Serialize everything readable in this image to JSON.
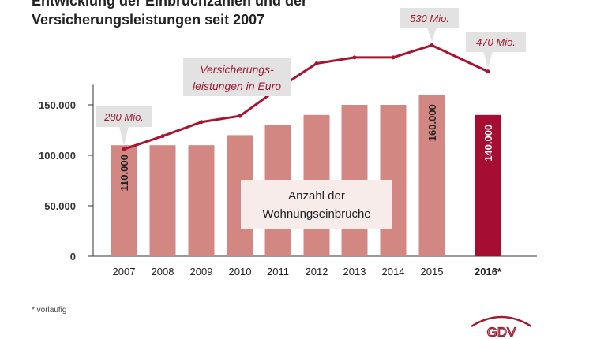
{
  "titles": {
    "line1": "Entwicklung der Einbruchzahlen und der",
    "line2": "Versicherungsleistungen seit 2007"
  },
  "footnote": "* vorläufig",
  "logo_text": "GDV",
  "chart_data": {
    "type": "bar",
    "categories": [
      "2007",
      "2008",
      "2009",
      "2010",
      "2011",
      "2012",
      "2013",
      "2014",
      "2015",
      "2016*"
    ],
    "ylim": [
      0,
      170000
    ],
    "yticks": [
      0,
      50000,
      100000,
      150000
    ],
    "ytick_labels": [
      "0",
      "50.000",
      "100.000",
      "150.000"
    ],
    "grid": false,
    "series": [
      {
        "name": "Anzahl der Wohnungseinbrüche",
        "type": "bar",
        "values": [
          110000,
          110000,
          110000,
          120000,
          130000,
          140000,
          150000,
          150000,
          160000,
          140000
        ],
        "data_labels": [
          "110.000",
          "",
          "",
          "",
          "",
          "",
          "",
          "",
          "160.000",
          "140.000"
        ]
      },
      {
        "name": "Versicherungsleistungen in Euro",
        "type": "line",
        "values_y_axis": [
          106000,
          119000,
          133000,
          139000,
          166000,
          191000,
          197000,
          197000,
          209000,
          183000
        ],
        "callouts": [
          "280 Mio.",
          "",
          "",
          "",
          "",
          "",
          "",
          "",
          "530 Mio.",
          "470 Mio."
        ]
      }
    ],
    "annotations": {
      "line_label_1": "Versicherungs-",
      "line_label_2": "leistungen in Euro",
      "bar_label_1": "Anzahl der",
      "bar_label_2": "Wohnungseinbrüche"
    },
    "colors": {
      "bar": "#d38783",
      "bar_highlight": "#a50d33",
      "line": "#a8142f",
      "callout_bg": "#e2e2e2",
      "callout_text": "#9e1b32",
      "axis": "#333333"
    }
  }
}
